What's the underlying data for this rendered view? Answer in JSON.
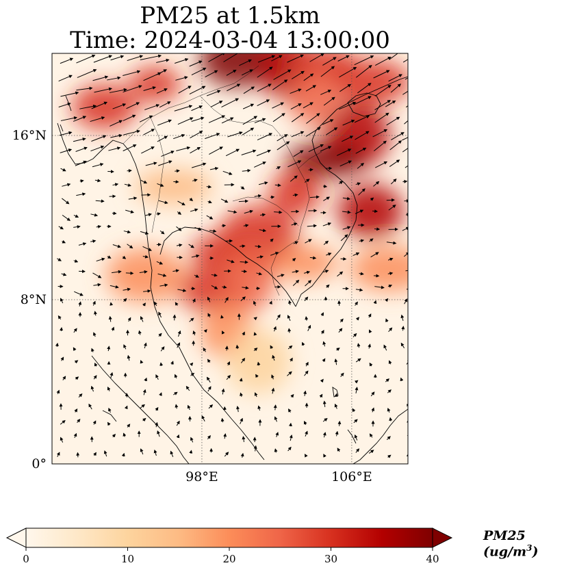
{
  "title": {
    "line1": "PM25 at 1.5km",
    "line2": "Time: 2024-03-04 13:00:00"
  },
  "map": {
    "lon_range": [
      90,
      109
    ],
    "lat_range": [
      0,
      20
    ],
    "lat_ticks": [
      {
        "value": 16,
        "label": "16°N"
      },
      {
        "value": 8,
        "label": "8°N"
      },
      {
        "value": 0,
        "label": "0°"
      }
    ],
    "lon_ticks": [
      {
        "value": 98,
        "label": "98°E"
      },
      {
        "value": 106,
        "label": "106°E"
      }
    ],
    "gridlines": true,
    "coastlines": true,
    "wind_vectors": true
  },
  "colorbar": {
    "label": "PM25 (ug/m",
    "label_sup": "3",
    "label_close": ")",
    "min": 0,
    "max": 40,
    "extend": "both",
    "ticks": [
      {
        "value": 0,
        "label": "0"
      },
      {
        "value": 10,
        "label": "10"
      },
      {
        "value": 20,
        "label": "20"
      },
      {
        "value": 30,
        "label": "30"
      },
      {
        "value": 40,
        "label": "40"
      }
    ],
    "colormap": "OrRd",
    "colors": [
      "#fff7ec",
      "#fee8c8",
      "#fdd49e",
      "#fdbb84",
      "#fc8d59",
      "#ef6548",
      "#d7301f",
      "#b30000",
      "#7f0000"
    ]
  },
  "pm25_plumes": [
    {
      "lon": 95.5,
      "lat": 18.5,
      "value": 28
    },
    {
      "lon": 92.8,
      "lat": 17.4,
      "value": 30
    },
    {
      "lon": 100.0,
      "lat": 19.7,
      "value": 38
    },
    {
      "lon": 102.5,
      "lat": 19.3,
      "value": 36
    },
    {
      "lon": 104.5,
      "lat": 19.5,
      "value": 30
    },
    {
      "lon": 107.0,
      "lat": 18.6,
      "value": 32
    },
    {
      "lon": 104.0,
      "lat": 17.8,
      "value": 24
    },
    {
      "lon": 106.3,
      "lat": 16.0,
      "value": 36
    },
    {
      "lon": 104.6,
      "lat": 14.8,
      "value": 38
    },
    {
      "lon": 103.0,
      "lat": 13.2,
      "value": 28
    },
    {
      "lon": 107.0,
      "lat": 12.3,
      "value": 36
    },
    {
      "lon": 101.0,
      "lat": 11.0,
      "value": 30
    },
    {
      "lon": 98.8,
      "lat": 10.3,
      "value": 32
    },
    {
      "lon": 98.5,
      "lat": 8.5,
      "value": 28
    },
    {
      "lon": 95.0,
      "lat": 9.2,
      "value": 22
    },
    {
      "lon": 100.5,
      "lat": 9.0,
      "value": 24
    },
    {
      "lon": 103.5,
      "lat": 9.8,
      "value": 22
    },
    {
      "lon": 108.0,
      "lat": 9.5,
      "value": 20
    },
    {
      "lon": 99.3,
      "lat": 6.5,
      "value": 18
    },
    {
      "lon": 101.0,
      "lat": 5.0,
      "value": 12
    },
    {
      "lon": 96.5,
      "lat": 13.5,
      "value": 16
    }
  ]
}
